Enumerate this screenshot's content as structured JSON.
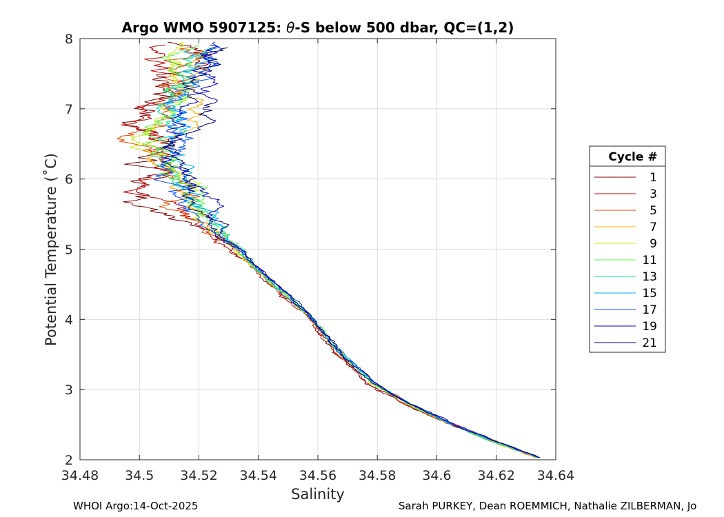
{
  "chart_data": {
    "type": "line",
    "title_prefix": "Argo WMO 5907125: ",
    "title_theta": "θ",
    "title_suffix": "-S below 500 dbar,  QC=(1,2)",
    "xlabel": "Salinity",
    "ylabel": "Potential Temperature (˚C)",
    "xlim": [
      34.48,
      34.64
    ],
    "ylim": [
      2,
      8
    ],
    "xticks": [
      34.48,
      34.5,
      34.52,
      34.54,
      34.56,
      34.58,
      34.6,
      34.62,
      34.64
    ],
    "xtick_labels": [
      "34.48",
      "34.5",
      "34.52",
      "34.54",
      "34.56",
      "34.58",
      "34.6",
      "34.62",
      "34.64"
    ],
    "yticks": [
      2,
      3,
      4,
      5,
      6,
      7,
      8
    ],
    "ytick_labels": [
      "2",
      "3",
      "4",
      "5",
      "6",
      "7",
      "8"
    ],
    "grid": true,
    "legend_title": "Cycle #",
    "legend_position": "right",
    "base_profile": [
      [
        34.634,
        2.03
      ],
      [
        34.62,
        2.25
      ],
      [
        34.605,
        2.5
      ],
      [
        34.59,
        2.8
      ],
      [
        34.578,
        3.1
      ],
      [
        34.568,
        3.5
      ],
      [
        34.562,
        3.8
      ],
      [
        34.556,
        4.1
      ],
      [
        34.545,
        4.5
      ],
      [
        34.535,
        4.9
      ],
      [
        34.524,
        5.3
      ],
      [
        34.517,
        5.6
      ],
      [
        34.513,
        5.9
      ],
      [
        34.51,
        6.2
      ],
      [
        34.508,
        6.5
      ],
      [
        34.509,
        6.8
      ],
      [
        34.512,
        7.1
      ],
      [
        34.515,
        7.4
      ],
      [
        34.518,
        7.7
      ],
      [
        34.52,
        7.9
      ]
    ],
    "series": [
      {
        "name": "1",
        "color": "#7f0000",
        "upper_offset": -0.009,
        "noise": 0.005
      },
      {
        "name": "3",
        "color": "#c40000",
        "upper_offset": -0.006,
        "noise": 0.004
      },
      {
        "name": "5",
        "color": "#e04a00",
        "upper_offset": -0.003,
        "noise": 0.004
      },
      {
        "name": "7",
        "color": "#ffaa00",
        "upper_offset": -0.001,
        "noise": 0.003
      },
      {
        "name": "9",
        "color": "#c8f000",
        "upper_offset": 0.0,
        "noise": 0.003
      },
      {
        "name": "11",
        "color": "#4cff3a",
        "upper_offset": 0.001,
        "noise": 0.003
      },
      {
        "name": "13",
        "color": "#00e0a0",
        "upper_offset": 0.002,
        "noise": 0.003
      },
      {
        "name": "15",
        "color": "#00a8ff",
        "upper_offset": 0.003,
        "noise": 0.003
      },
      {
        "name": "17",
        "color": "#0050ff",
        "upper_offset": 0.004,
        "noise": 0.003
      },
      {
        "name": "19",
        "color": "#0000c8",
        "upper_offset": 0.005,
        "noise": 0.003
      },
      {
        "name": "21",
        "color": "#00007f",
        "upper_offset": 0.006,
        "noise": 0.003
      }
    ]
  },
  "footer": {
    "left": "WHOI Argo:14-Oct-2025",
    "right": "Sarah PURKEY, Dean ROEMMICH, Nathalie ZILBERMAN, Jo"
  }
}
